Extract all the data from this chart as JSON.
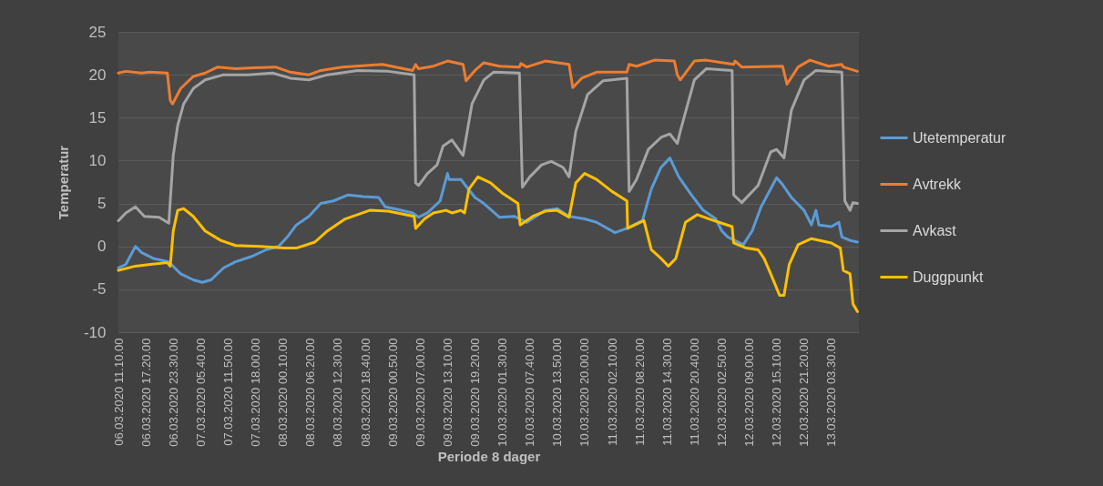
{
  "chart_data": {
    "type": "line",
    "ylabel": "Temperatur",
    "xlabel": "Periode 8 dager",
    "legend": "right",
    "grid": "y",
    "xlim": [
      "2020-03-06T11:10",
      "2020-03-13T09:40"
    ],
    "ylim": [
      -10,
      25
    ],
    "yticks": [
      -10,
      -5,
      0,
      5,
      10,
      15,
      20,
      25
    ],
    "xticks": [
      {
        "value": "2020-03-06T11:10",
        "label": "06.03.2020 11.10.00"
      },
      {
        "value": "2020-03-06T17:20",
        "label": "06.03.2020 17.20.00"
      },
      {
        "value": "2020-03-06T23:30",
        "label": "06.03.2020 23.30.00"
      },
      {
        "value": "2020-03-07T05:40",
        "label": "07.03.2020 05.40.00"
      },
      {
        "value": "2020-03-07T11:50",
        "label": "07.03.2020 11.50.00"
      },
      {
        "value": "2020-03-07T18:00",
        "label": "07.03.2020 18.00.00"
      },
      {
        "value": "2020-03-08T00:10",
        "label": "08.03.2020 00.10.00"
      },
      {
        "value": "2020-03-08T06:20",
        "label": "08.03.2020 06.20.00"
      },
      {
        "value": "2020-03-08T12:30",
        "label": "08.03.2020 12.30.00"
      },
      {
        "value": "2020-03-08T18:40",
        "label": "08.03.2020 18.40.00"
      },
      {
        "value": "2020-03-09T00:50",
        "label": "09.03.2020 00.50.00"
      },
      {
        "value": "2020-03-09T07:00",
        "label": "09.03.2020 07.00.00"
      },
      {
        "value": "2020-03-09T13:10",
        "label": "09.03.2020 13.10.00"
      },
      {
        "value": "2020-03-09T19:20",
        "label": "09.03.2020 19.20.00"
      },
      {
        "value": "2020-03-10T01:30",
        "label": "10.03.2020 01.30.00"
      },
      {
        "value": "2020-03-10T07:40",
        "label": "10.03.2020 07.40.00"
      },
      {
        "value": "2020-03-10T13:50",
        "label": "10.03.2020 13.50.00"
      },
      {
        "value": "2020-03-10T20:00",
        "label": "10.03.2020 20.00.00"
      },
      {
        "value": "2020-03-11T02:10",
        "label": "11.03.2020 02.10.00"
      },
      {
        "value": "2020-03-11T08:20",
        "label": "11.03.2020 08.20.00"
      },
      {
        "value": "2020-03-11T14:30",
        "label": "11.03.2020 14.30.00"
      },
      {
        "value": "2020-03-11T20:40",
        "label": "11.03.2020 20.40.00"
      },
      {
        "value": "2020-03-12T02:50",
        "label": "12.03.2020 02.50.00"
      },
      {
        "value": "2020-03-12T09:00",
        "label": "12.03.2020 09.00.00"
      },
      {
        "value": "2020-03-12T15:10",
        "label": "12.03.2020 15.10.00"
      },
      {
        "value": "2020-03-12T21:20",
        "label": "12.03.2020 21.20.00"
      },
      {
        "value": "2020-03-13T03:30",
        "label": "13.03.2020 03.30.00"
      }
    ],
    "series": [
      {
        "name": "Utetemperatur",
        "color": "#5b9bd5",
        "x": [
          "2020-03-06T11:10",
          "2020-03-06T12:50",
          "2020-03-06T15:00",
          "2020-03-06T16:20",
          "2020-03-06T19:00",
          "2020-03-06T22:30",
          "2020-03-07T01:10",
          "2020-03-07T04:00",
          "2020-03-07T06:00",
          "2020-03-07T08:00",
          "2020-03-07T10:50",
          "2020-03-07T13:30",
          "2020-03-07T17:00",
          "2020-03-07T20:20",
          "2020-03-07T23:10",
          "2020-03-08T01:10",
          "2020-03-08T03:10",
          "2020-03-08T06:00",
          "2020-03-08T08:40",
          "2020-03-08T11:30",
          "2020-03-08T14:50",
          "2020-03-08T18:20",
          "2020-03-08T21:40",
          "2020-03-08T23:10",
          "2020-03-09T01:10",
          "2020-03-09T05:20",
          "2020-03-09T06:40",
          "2020-03-09T08:40",
          "2020-03-09T11:30",
          "2020-03-09T13:10",
          "2020-03-09T13:30",
          "2020-03-09T16:10",
          "2020-03-09T19:20",
          "2020-03-09T21:20",
          "2020-03-10T00:50",
          "2020-03-10T04:10",
          "2020-03-10T07:00",
          "2020-03-10T11:10",
          "2020-03-10T13:50",
          "2020-03-10T16:30",
          "2020-03-10T20:00",
          "2020-03-10T22:40",
          "2020-03-11T02:50",
          "2020-03-11T05:30",
          "2020-03-11T09:00",
          "2020-03-11T11:00",
          "2020-03-11T13:10",
          "2020-03-11T15:10",
          "2020-03-11T17:10",
          "2020-03-11T20:00",
          "2020-03-11T22:40",
          "2020-03-12T01:30",
          "2020-03-12T02:50",
          "2020-03-12T04:10",
          "2020-03-12T07:40",
          "2020-03-12T09:40",
          "2020-03-12T11:40",
          "2020-03-12T13:50",
          "2020-03-12T15:10",
          "2020-03-12T16:30",
          "2020-03-12T18:30",
          "2020-03-12T21:20",
          "2020-03-12T23:00",
          "2020-03-13T00:00",
          "2020-03-13T00:40",
          "2020-03-13T03:30",
          "2020-03-13T05:10",
          "2020-03-13T05:50",
          "2020-03-13T07:40",
          "2020-03-13T09:20"
        ],
        "values": [
          -2.5,
          -2.1,
          0.0,
          -0.7,
          -1.4,
          -1.8,
          -3.2,
          -3.9,
          -4.2,
          -3.9,
          -2.5,
          -1.8,
          -1.2,
          -0.4,
          0.0,
          1.1,
          2.5,
          3.5,
          5.0,
          5.3,
          6.0,
          5.8,
          5.7,
          4.6,
          4.4,
          3.9,
          3.4,
          3.9,
          5.3,
          8.5,
          7.8,
          7.8,
          5.7,
          5.0,
          3.4,
          3.5,
          2.8,
          4.2,
          4.4,
          3.5,
          3.2,
          2.8,
          1.6,
          2.1,
          3.0,
          6.7,
          9.2,
          10.3,
          8.1,
          6.0,
          4.2,
          3.2,
          1.8,
          1.1,
          0.2,
          1.8,
          4.6,
          6.7,
          8.0,
          7.2,
          5.7,
          4.2,
          2.5,
          4.2,
          2.5,
          2.3,
          2.8,
          1.1,
          0.7,
          0.5
        ]
      },
      {
        "name": "Avtrekk",
        "color": "#ed7d31",
        "x": [
          "2020-03-06T11:10",
          "2020-03-06T12:50",
          "2020-03-06T16:20",
          "2020-03-06T18:20",
          "2020-03-06T22:10",
          "2020-03-06T22:50",
          "2020-03-06T23:20",
          "2020-03-07T01:10",
          "2020-03-07T04:00",
          "2020-03-07T06:40",
          "2020-03-07T09:30",
          "2020-03-07T13:30",
          "2020-03-07T17:40",
          "2020-03-07T22:30",
          "2020-03-08T01:50",
          "2020-03-08T06:00",
          "2020-03-08T08:40",
          "2020-03-08T13:30",
          "2020-03-08T22:30",
          "2020-03-09T05:20",
          "2020-03-09T06:00",
          "2020-03-09T06:40",
          "2020-03-09T10:00",
          "2020-03-09T13:10",
          "2020-03-09T16:40",
          "2020-03-09T17:20",
          "2020-03-09T19:20",
          "2020-03-09T21:20",
          "2020-03-10T00:50",
          "2020-03-10T05:20",
          "2020-03-10T05:40",
          "2020-03-10T07:00",
          "2020-03-10T11:10",
          "2020-03-10T16:30",
          "2020-03-10T17:20",
          "2020-03-10T19:20",
          "2020-03-10T22:40",
          "2020-03-11T05:30",
          "2020-03-11T06:00",
          "2020-03-11T07:40",
          "2020-03-11T11:40",
          "2020-03-11T16:10",
          "2020-03-11T16:50",
          "2020-03-11T17:30",
          "2020-03-11T20:40",
          "2020-03-11T23:20",
          "2020-03-12T05:30",
          "2020-03-12T05:50",
          "2020-03-12T07:20",
          "2020-03-12T16:30",
          "2020-03-12T17:30",
          "2020-03-12T20:00",
          "2020-03-12T22:40",
          "2020-03-13T02:50",
          "2020-03-13T05:50",
          "2020-03-13T06:10",
          "2020-03-13T09:20"
        ],
        "values": [
          20.2,
          20.4,
          20.2,
          20.3,
          20.2,
          17.0,
          16.6,
          18.4,
          19.8,
          20.2,
          20.9,
          20.7,
          20.8,
          20.9,
          20.3,
          20.0,
          20.5,
          20.9,
          21.2,
          20.5,
          21.2,
          20.7,
          21.0,
          21.6,
          21.2,
          19.3,
          20.5,
          21.4,
          21.0,
          20.9,
          21.3,
          20.9,
          21.6,
          21.2,
          18.5,
          19.6,
          20.3,
          20.3,
          21.2,
          21.0,
          21.7,
          21.6,
          20.0,
          19.4,
          21.6,
          21.7,
          21.2,
          21.6,
          20.9,
          21.0,
          18.9,
          20.9,
          21.7,
          21.0,
          21.2,
          20.9,
          20.4
        ]
      },
      {
        "name": "Avkast",
        "color": "#a5a5a5",
        "x": [
          "2020-03-06T11:10",
          "2020-03-06T12:50",
          "2020-03-06T15:00",
          "2020-03-06T17:00",
          "2020-03-06T20:20",
          "2020-03-06T22:30",
          "2020-03-06T23:30",
          "2020-03-07T00:30",
          "2020-03-07T01:50",
          "2020-03-07T04:00",
          "2020-03-07T06:40",
          "2020-03-07T10:50",
          "2020-03-07T16:20",
          "2020-03-07T21:50",
          "2020-03-08T01:50",
          "2020-03-08T06:00",
          "2020-03-08T10:10",
          "2020-03-08T17:00",
          "2020-03-08T23:50",
          "2020-03-09T05:40",
          "2020-03-09T06:00",
          "2020-03-09T06:40",
          "2020-03-09T08:40",
          "2020-03-09T10:50",
          "2020-03-09T12:10",
          "2020-03-09T14:10",
          "2020-03-09T16:40",
          "2020-03-09T18:40",
          "2020-03-09T21:20",
          "2020-03-09T23:30",
          "2020-03-10T05:20",
          "2020-03-10T06:00",
          "2020-03-10T07:40",
          "2020-03-10T10:20",
          "2020-03-10T12:30",
          "2020-03-10T15:10",
          "2020-03-10T16:30",
          "2020-03-10T18:00",
          "2020-03-10T20:40",
          "2020-03-11T00:10",
          "2020-03-11T05:30",
          "2020-03-11T06:00",
          "2020-03-11T07:40",
          "2020-03-11T10:20",
          "2020-03-11T13:10",
          "2020-03-11T15:10",
          "2020-03-11T16:50",
          "2020-03-11T17:30",
          "2020-03-11T20:40",
          "2020-03-11T23:20",
          "2020-03-12T05:10",
          "2020-03-12T05:30",
          "2020-03-12T07:20",
          "2020-03-12T11:00",
          "2020-03-12T13:50",
          "2020-03-12T15:10",
          "2020-03-12T16:50",
          "2020-03-12T18:30",
          "2020-03-12T21:20",
          "2020-03-13T00:00",
          "2020-03-13T05:50",
          "2020-03-13T06:30",
          "2020-03-13T07:40",
          "2020-03-13T08:20",
          "2020-03-13T09:20"
        ],
        "values": [
          3.0,
          3.9,
          4.6,
          3.5,
          3.4,
          2.7,
          10.6,
          14.1,
          16.6,
          18.4,
          19.4,
          20.0,
          20.0,
          20.2,
          19.6,
          19.4,
          20.0,
          20.5,
          20.4,
          20.0,
          7.4,
          7.1,
          8.5,
          9.5,
          11.7,
          12.4,
          10.6,
          16.6,
          19.4,
          20.3,
          20.2,
          6.9,
          8.1,
          9.5,
          9.9,
          9.2,
          8.1,
          13.4,
          17.7,
          19.3,
          19.6,
          6.4,
          7.8,
          11.3,
          12.7,
          13.1,
          12.0,
          13.4,
          19.4,
          20.7,
          20.5,
          6.0,
          5.1,
          7.1,
          11.0,
          11.3,
          10.3,
          15.9,
          19.4,
          20.5,
          20.3,
          5.3,
          4.2,
          5.1,
          5.0
        ]
      },
      {
        "name": "Duggpunkt",
        "color": "#ffc000",
        "x": [
          "2020-03-06T11:10",
          "2020-03-06T15:00",
          "2020-03-06T18:20",
          "2020-03-06T22:10",
          "2020-03-06T22:50",
          "2020-03-06T23:30",
          "2020-03-07T00:30",
          "2020-03-07T01:50",
          "2020-03-07T04:00",
          "2020-03-07T06:40",
          "2020-03-07T10:10",
          "2020-03-07T13:30",
          "2020-03-07T19:00",
          "2020-03-08T00:30",
          "2020-03-08T03:10",
          "2020-03-08T07:20",
          "2020-03-08T10:10",
          "2020-03-08T14:10",
          "2020-03-08T19:40",
          "2020-03-08T23:50",
          "2020-03-09T05:40",
          "2020-03-09T06:00",
          "2020-03-09T08:00",
          "2020-03-09T10:00",
          "2020-03-09T12:50",
          "2020-03-09T14:10",
          "2020-03-09T16:10",
          "2020-03-09T17:00",
          "2020-03-09T18:00",
          "2020-03-09T20:00",
          "2020-03-09T22:50",
          "2020-03-10T01:30",
          "2020-03-10T05:00",
          "2020-03-10T05:30",
          "2020-03-10T08:20",
          "2020-03-10T11:10",
          "2020-03-10T13:50",
          "2020-03-10T16:30",
          "2020-03-10T18:00",
          "2020-03-10T20:00",
          "2020-03-10T22:40",
          "2020-03-11T02:10",
          "2020-03-11T05:30",
          "2020-03-11T05:40",
          "2020-03-11T09:20",
          "2020-03-11T11:00",
          "2020-03-11T13:10",
          "2020-03-11T14:50",
          "2020-03-11T16:30",
          "2020-03-11T18:40",
          "2020-03-11T21:20",
          "2020-03-12T00:00",
          "2020-03-12T02:50",
          "2020-03-12T05:10",
          "2020-03-12T05:30",
          "2020-03-12T08:20",
          "2020-03-12T11:00",
          "2020-03-12T12:20",
          "2020-03-12T13:50",
          "2020-03-12T15:50",
          "2020-03-12T16:50",
          "2020-03-12T18:00",
          "2020-03-12T20:00",
          "2020-03-12T23:00",
          "2020-03-13T03:30",
          "2020-03-13T05:30",
          "2020-03-13T06:10",
          "2020-03-13T07:40",
          "2020-03-13T08:20",
          "2020-03-13T09:20"
        ],
        "values": [
          -2.8,
          -2.3,
          -2.1,
          -1.9,
          -2.3,
          1.8,
          4.2,
          4.4,
          3.5,
          1.8,
          0.7,
          0.1,
          0.0,
          -0.2,
          -0.2,
          0.5,
          1.8,
          3.2,
          4.2,
          4.1,
          3.5,
          2.1,
          3.2,
          3.9,
          4.2,
          3.9,
          4.2,
          3.9,
          6.7,
          8.1,
          7.4,
          6.2,
          5.0,
          2.5,
          3.5,
          4.1,
          4.2,
          3.4,
          7.4,
          8.5,
          7.8,
          6.4,
          5.3,
          2.1,
          3.0,
          -0.4,
          -1.4,
          -2.3,
          -1.4,
          2.8,
          3.7,
          3.2,
          2.7,
          2.3,
          0.4,
          -0.2,
          -0.4,
          -1.4,
          -3.2,
          -5.7,
          -5.7,
          -2.1,
          0.2,
          0.9,
          0.4,
          -0.2,
          -2.8,
          -3.2,
          -6.7,
          -7.6
        ]
      }
    ]
  }
}
